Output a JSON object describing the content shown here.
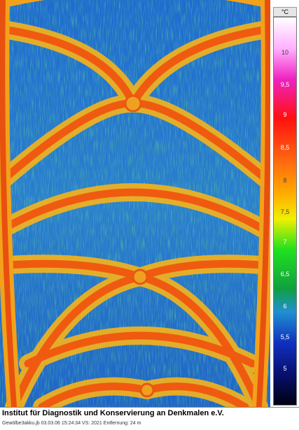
{
  "colorbar": {
    "unit": "°C",
    "ticks": [
      "10",
      "9,5",
      "9",
      "8,5",
      "8",
      "7,5",
      "7",
      "6,5",
      "6",
      "5,5",
      "5"
    ]
  },
  "caption": {
    "title": "Institut für Diagnostik und Konservierung an Denkmalen e.V.",
    "info": "Gewölbe3akku.jb  03.03.06  15:24:34  VS: 2021  Entfernung: 24 m"
  }
}
